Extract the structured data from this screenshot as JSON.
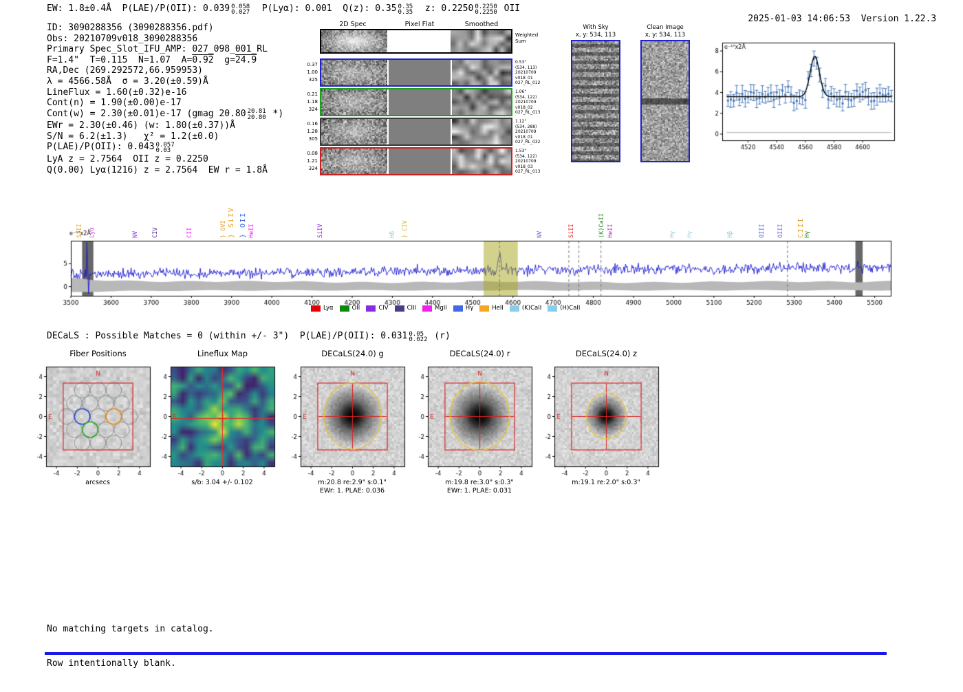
{
  "header": {
    "left_segments": [
      {
        "t": "EW: 1.8±0.4Å  P(LAE)/P(OII): 0.039"
      },
      {
        "sup": "0.058",
        "sub": "0.027"
      },
      {
        "t": "  P(Lyα): 0.001  Q(z): 0.35"
      },
      {
        "sup": "0.35",
        "sub": "0.35"
      },
      {
        "t": "  z: 0.2250"
      },
      {
        "sup": "0.2250",
        "sub": "0.2250"
      },
      {
        "t": " OII"
      }
    ],
    "datetime": "2025-01-03 14:06:53",
    "version": "Version 1.22.3"
  },
  "info_block": {
    "lines": [
      [
        {
          "t": "ID: 3090288356 (3090288356.pdf)"
        }
      ],
      [
        {
          "t": "Obs: 20210709v018_3090288356"
        }
      ],
      [
        {
          "t": "Primary Spec_Slot_IFU_AMP: 027_098_001_RL"
        }
      ],
      [
        {
          "t": "F=1.4\"  T=0.115  N=1.07  A="
        },
        {
          "t": "0.92",
          "over": true
        },
        {
          "t": "  g="
        },
        {
          "t": "24.9",
          "over": true
        }
      ],
      [
        {
          "t": "RA,Dec (269.292572,66.959953)"
        }
      ],
      [
        {
          "t": "λ = 4566.58Å  σ = 3.20(±0.59)Å"
        }
      ],
      [
        {
          "t": "LineFlux = 1.60(±0.32)e-16"
        }
      ],
      [
        {
          "t": "Cont(n) = 1.90(±0.00)e-17"
        }
      ],
      [
        {
          "t": "Cont(w) = 2.30(±0.01)e-17 (gmag 20.80"
        },
        {
          "sup": "20.81",
          "sub": "20.80"
        },
        {
          "t": " *)"
        }
      ],
      [
        {
          "t": "EWr = 2.30(±0.46) (w: 1.80(±0.37))Å"
        }
      ],
      [
        {
          "t": "S/N = 6.2(±1.3)   χ² = 1.2(±0.0)"
        }
      ],
      [
        {
          "t": "P(LAE)/P(OII): 0.043"
        },
        {
          "sup": "0.057",
          "sub": "0.03"
        }
      ],
      [
        {
          "t": "LyA z = 2.7564  OII z = 0.2250"
        }
      ],
      [
        {
          "t": "Q(0.00) Lyα(1216) z = 2.7564  EW r = 1.8Å"
        }
      ]
    ]
  },
  "cutouts": {
    "column_headers": [
      "2D Spec",
      "Pixel Flat",
      "Smoothed"
    ],
    "weighted_right": [
      "Weighted",
      "Sum"
    ],
    "rows": [
      {
        "border": "#2020cc",
        "left": [
          "0.37",
          "1.00",
          "325"
        ],
        "right": [
          "0.53\"",
          "(534, 113)",
          "20210709",
          "v018_01",
          "027_RL_012"
        ]
      },
      {
        "border": "#18a018",
        "left": [
          "0.21",
          "1.18",
          "324"
        ],
        "right": [
          "1.06\"",
          "(534, 122)",
          "20210709",
          "v018_02",
          "027_RL_013"
        ]
      },
      {
        "border": "#3c3c3c",
        "left": [
          "0.16",
          "1.28",
          "305"
        ],
        "right": [
          "1.12\"",
          "(534, 288)",
          "20210709",
          "v018_01",
          "027_RL_032"
        ]
      },
      {
        "border": "#cc2020",
        "left": [
          "0.08",
          "1.21",
          "324"
        ],
        "right": [
          "1.53\"",
          "(534, 122)",
          "20210709",
          "v018_03",
          "027_RL_013"
        ]
      }
    ]
  },
  "sky_panels": [
    {
      "title": "With Sky",
      "coords": "x, y: 534, 113"
    },
    {
      "title": "Clean Image",
      "coords": "x, y: 534, 113"
    }
  ],
  "chart_data": [
    {
      "id": "emission-line-fit",
      "type": "line",
      "annotation": "e⁻¹⁷x2Å",
      "xlim": [
        4502,
        4622
      ],
      "ylim": [
        -0.6,
        8.8
      ],
      "xticks": [
        4520,
        4540,
        4560,
        4580,
        4600
      ],
      "yticks": [
        0,
        2,
        4,
        6,
        8
      ],
      "series": [
        {
          "name": "observed",
          "style": "errorbar",
          "color": "#4878b8",
          "continuum": 3.6,
          "noise_sigma": 0.4,
          "errorbar": 0.7,
          "step": 2
        },
        {
          "name": "gaussian-fit",
          "style": "line",
          "color": "#000000",
          "model": {
            "mu": 4566.58,
            "sigma": 3.2,
            "amp": 3.9,
            "continuum": 3.6
          }
        }
      ]
    },
    {
      "id": "full-spectrum",
      "type": "line",
      "annotation": "e⁻¹⁷x2Å",
      "xlim": [
        3500,
        5540
      ],
      "ylim": [
        -2,
        10
      ],
      "xticks": [
        3500,
        3600,
        3700,
        3800,
        3900,
        4000,
        4100,
        4200,
        4300,
        4400,
        4500,
        4600,
        4700,
        4800,
        4900,
        5000,
        5100,
        5200,
        5300,
        5400,
        5500
      ],
      "yticks": [
        0,
        5
      ],
      "series": [
        {
          "name": "spectrum",
          "color": "#1414d2",
          "continuum_start": 2.75,
          "continuum_end": 4.15,
          "noise_sigma": 0.55,
          "emission": {
            "mu": 4566.58,
            "sigma": 3.2,
            "amp": 4.3
          },
          "left_spike": {
            "x": 3541,
            "top": 9.6,
            "bottom": -1.5
          }
        }
      ],
      "error_band": {
        "color": "#b8b8b8",
        "half_width": 1.0,
        "left_flare": 0.8
      },
      "highlight_band": {
        "x0": 4527,
        "x1": 4612,
        "color": "#a5a519",
        "alpha": 0.5
      },
      "masked_bands": [
        [
          3528,
          3556
        ],
        [
          5452,
          5470
        ]
      ],
      "dashed_lines": [
        4566.6,
        4739,
        4764,
        4819,
        5283
      ],
      "line_labels": [
        {
          "wave": 3520,
          "label": "SiII",
          "color": "#e6a020"
        },
        {
          "wave": 3552,
          "label": "Lyα",
          "color": "#d050d0"
        },
        {
          "wave": 3659,
          "label": "NV",
          "color": "#8a2be2"
        },
        {
          "wave": 3708,
          "label": "CIV",
          "color": "#55309a"
        },
        {
          "wave": 3795,
          "label": "CII",
          "color": "#ee22ee"
        },
        {
          "wave": 3878,
          "label": "} OVI",
          "color": "#e6a020"
        },
        {
          "wave": 3898,
          "label": "} SiIV",
          "color": "#e6a020",
          "tall": true
        },
        {
          "wave": 3928,
          "label": "} OII",
          "color": "#4169e1",
          "tall": true
        },
        {
          "wave": 3948,
          "label": "HeII",
          "color": "#ee22ee"
        },
        {
          "wave": 4119,
          "label": "SiIV",
          "color": "#8a2be2"
        },
        {
          "wave": 4300,
          "label": "Hδ",
          "color": "#87ceeb"
        },
        {
          "wave": 4330,
          "label": "} CIV",
          "color": "#d4af20"
        },
        {
          "wave": 4665,
          "label": "NV",
          "color": "#7d4fd0"
        },
        {
          "wave": 4745,
          "label": "SiII",
          "color": "#e03030"
        },
        {
          "wave": 4819,
          "label": "(K)CaII",
          "color": "#2e8b22"
        },
        {
          "wave": 4842,
          "label": "HeII",
          "color": "#bb33bb"
        },
        {
          "wave": 4995,
          "label": "Hγ",
          "color": "#87ceeb"
        },
        {
          "wave": 5038,
          "label": "Hγ",
          "color": "#a0d4ee"
        },
        {
          "wave": 5139,
          "label": "Hβ",
          "color": "#87ceeb"
        },
        {
          "wave": 5218,
          "label": "OIII",
          "color": "#4169e1"
        },
        {
          "wave": 5265,
          "label": "OIII",
          "color": "#7766dd"
        },
        {
          "wave": 5315,
          "label": "CIII",
          "color": "#e6a020",
          "tall": true
        },
        {
          "wave": 5332,
          "label": "Hγ",
          "color": "#2e8b22"
        }
      ],
      "legend": [
        {
          "label": "Lyα",
          "color": "#e60000"
        },
        {
          "label": "OII",
          "color": "#0a8a0a"
        },
        {
          "label": "CIV",
          "color": "#8a2be2"
        },
        {
          "label": "CIII",
          "color": "#483d8b"
        },
        {
          "label": "MgII",
          "color": "#ee22ee"
        },
        {
          "label": "Hγ",
          "color": "#4169e1"
        },
        {
          "label": "HeII",
          "color": "#f5a623"
        },
        {
          "label": "(K)CaII",
          "color": "#87ceeb"
        },
        {
          "label": "(H)CaII",
          "color": "#87ceeb"
        }
      ]
    }
  ],
  "decals": {
    "header_segments": [
      {
        "t": "DECaLS : Possible Matches = 0 (within +/- 3\")  P(LAE)/P(OII): 0.031"
      },
      {
        "sup": "0.05",
        "sub": "0.022"
      },
      {
        "t": " (r)"
      }
    ],
    "panels": [
      {
        "id": "fiber",
        "type": "fiber",
        "title": "Fiber Positions",
        "xlabel": "arcsecs",
        "xticks": [
          -4,
          -2,
          0,
          2,
          4
        ],
        "yticks": [
          4,
          2,
          0,
          -2,
          -4
        ],
        "north": "N",
        "east": "E"
      },
      {
        "id": "lineflux",
        "type": "map",
        "title": "Lineflux Map",
        "xlabel": "s/b: 3.04 +/- 0.102",
        "xticks": [
          -4,
          -2,
          0,
          2,
          4
        ],
        "yticks": [
          4,
          2,
          0,
          -2,
          -4
        ],
        "north": "N",
        "east": "E"
      },
      {
        "id": "decals-g",
        "type": "cutout",
        "title": "DECaLS(24.0) g",
        "xlabel": "m:20.8 re:2.9\" s:0.1\"",
        "xlabel2": "EWr: 1. PLAE: 0.036",
        "ellipse_r": 2.9,
        "xticks": [
          -4,
          -2,
          0,
          2,
          4
        ],
        "yticks": [
          4,
          2,
          0,
          -2,
          -4
        ],
        "north": "N",
        "east": "E"
      },
      {
        "id": "decals-r",
        "type": "cutout",
        "title": "DECaLS(24.0) r",
        "xlabel": "m:19.8 re:3.0\" s:0.3\"",
        "xlabel2": "EWr: 1. PLAE: 0.031",
        "ellipse_r": 3.0,
        "xticks": [
          -4,
          -2,
          0,
          2,
          4
        ],
        "yticks": [
          4,
          2,
          0,
          -2,
          -4
        ],
        "north": "N",
        "east": "E"
      },
      {
        "id": "decals-z",
        "type": "cutout",
        "title": "DECaLS(24.0) z",
        "xlabel": "m:19.1 re:2.0\" s:0.3\"",
        "ellipse_r": 2.0,
        "xticks": [
          -4,
          -2,
          0,
          2,
          4
        ],
        "yticks": [
          4,
          2,
          0,
          -2,
          -4
        ],
        "north": "N",
        "east": "E"
      }
    ]
  },
  "footer": {
    "lines": [
      "No matching targets in catalog.",
      "Row intentionally blank."
    ]
  },
  "accent": {
    "bottom_bar": "#1a1ae6",
    "panel_border_blue": "#2020cc"
  }
}
